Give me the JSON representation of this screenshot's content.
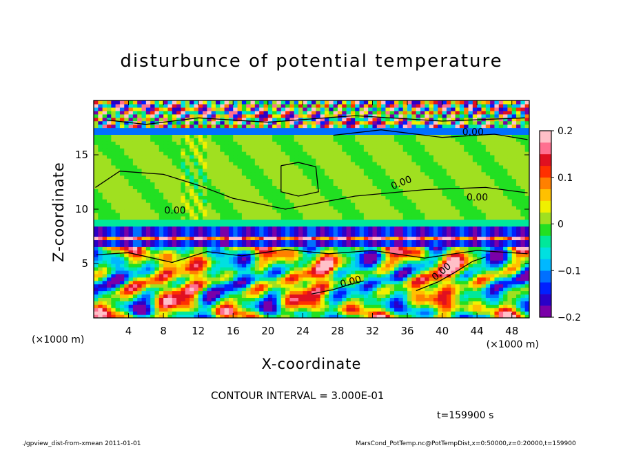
{
  "chart_data": {
    "type": "heatmap",
    "title": "disturbunce of potential temperature",
    "xlabel": "X-coordinate",
    "ylabel": "Z-coordinate",
    "x_unit": "(×1000 m)",
    "y_unit": "(×1000 m)",
    "xlim": [
      0,
      50
    ],
    "ylim": [
      0,
      20
    ],
    "x_ticks": [
      "4",
      "8",
      "12",
      "16",
      "20",
      "24",
      "28",
      "32",
      "36",
      "40",
      "44",
      "48"
    ],
    "y_ticks": [
      "5",
      "10",
      "15"
    ],
    "colorbar": {
      "min": -0.2,
      "max": 0.2,
      "tick_labels": [
        "0.2",
        "0.1",
        "0",
        "−0.1",
        "−0.2"
      ],
      "colors": [
        "#7a00a8",
        "#2a00c8",
        "#0020ff",
        "#0070ff",
        "#00b8ff",
        "#00e0e0",
        "#00e89a",
        "#22e022",
        "#a0e020",
        "#f0f000",
        "#ffc000",
        "#ff8000",
        "#ff3000",
        "#e01020",
        "#ff7090",
        "#ffc0c8"
      ]
    },
    "contour_labels": [
      "0.00",
      "0.00",
      "0.00",
      "0.00",
      "0.00",
      "0.00"
    ],
    "contour_interval": "CONTOUR INTERVAL = 3.000E-01",
    "time": "t=159900 s"
  },
  "footer": {
    "left": "./gpview_dist-from-xmean  2011-01-01",
    "right": "MarsCond_PotTemp.nc@PotTempDist,x=0:50000,z=0:20000,t=159900"
  }
}
